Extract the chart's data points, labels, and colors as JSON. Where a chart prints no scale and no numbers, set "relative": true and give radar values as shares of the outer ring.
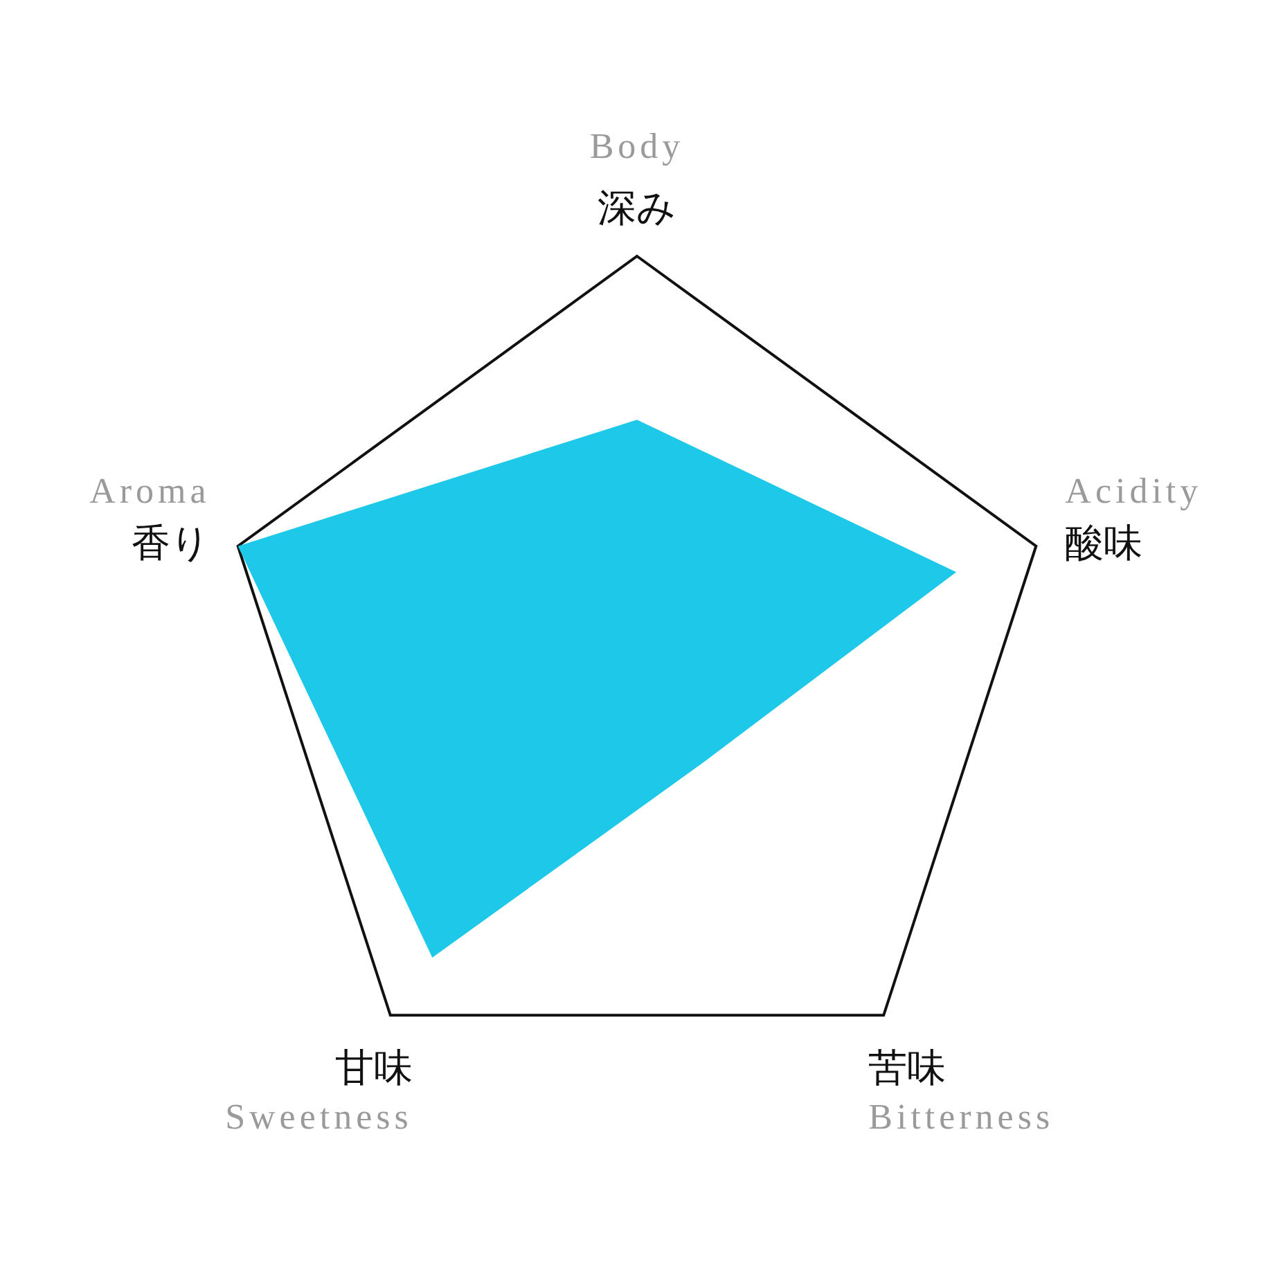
{
  "chart_data": {
    "type": "radar",
    "categories": [
      "Body\n深み",
      "Acidity\n酸味",
      "苦味\nBitterness",
      "甘味\nSweetness",
      "Aroma\n香り"
    ],
    "relative": true,
    "series": [
      {
        "color": "#1ec8e8",
        "values": [
          0.61,
          0.8,
          0.26,
          0.83,
          1
        ]
      }
    ]
  }
}
